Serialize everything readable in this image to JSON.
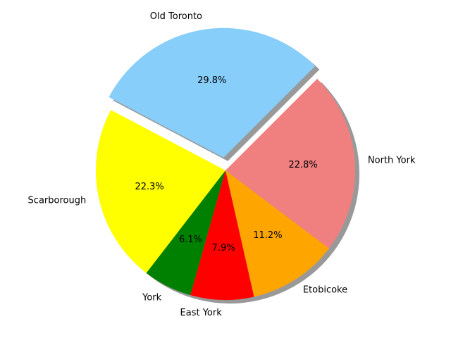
{
  "chart_data": {
    "type": "pie",
    "title": "",
    "start_angle_deg": 45,
    "direction": "counterclockwise",
    "shadow": true,
    "slices": [
      {
        "label": "Old Toronto",
        "value": 29.8,
        "pct_label": "29.8%",
        "color": "#87CEFA",
        "exploded": true
      },
      {
        "label": "Scarborough",
        "value": 22.3,
        "pct_label": "22.3%",
        "color": "#FFFF00",
        "exploded": false
      },
      {
        "label": "York",
        "value": 6.1,
        "pct_label": "6.1%",
        "color": "#008000",
        "exploded": false
      },
      {
        "label": "East York",
        "value": 7.9,
        "pct_label": "7.9%",
        "color": "#FF0000",
        "exploded": false
      },
      {
        "label": "Etobicoke",
        "value": 11.2,
        "pct_label": "11.2%",
        "color": "#FFA500",
        "exploded": false
      },
      {
        "label": "North York",
        "value": 22.8,
        "pct_label": "22.8%",
        "color": "#F08080",
        "exploded": false
      }
    ]
  }
}
